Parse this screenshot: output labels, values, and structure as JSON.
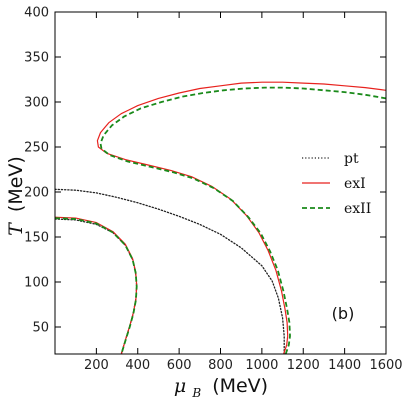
{
  "chart_data": {
    "type": "line",
    "title": "",
    "xlabel_symbol": "μ",
    "xlabel_sub": "B",
    "xlabel_unit": "(MeV)",
    "ylabel_symbol": "T",
    "ylabel_unit": "(MeV)",
    "xlim": [
      0,
      1600
    ],
    "ylim": [
      20,
      400
    ],
    "x_ticks": [
      200,
      400,
      600,
      800,
      1000,
      1200,
      1400,
      1600
    ],
    "y_ticks": [
      50,
      100,
      150,
      200,
      250,
      300,
      350,
      400
    ],
    "legend": {
      "placement": "center-right"
    },
    "annotation": "(b)",
    "series": [
      {
        "name": "pt",
        "color": "#222222",
        "style": "dotted",
        "segments": [
          [
            [
              0,
              170
            ],
            [
              100,
              169
            ],
            [
              200,
              164
            ],
            [
              280,
              155
            ],
            [
              340,
              141
            ],
            [
              375,
              125
            ],
            [
              390,
              110
            ],
            [
              395,
              95
            ],
            [
              390,
              80
            ],
            [
              378,
              65
            ],
            [
              360,
              50
            ],
            [
              340,
              35
            ],
            [
              320,
              20
            ]
          ],
          [
            [
              0,
              203
            ],
            [
              100,
              202
            ],
            [
              200,
              199
            ],
            [
              300,
              194
            ],
            [
              400,
              188
            ],
            [
              500,
              181
            ],
            [
              600,
              173
            ],
            [
              700,
              164
            ],
            [
              800,
              153
            ],
            [
              900,
              138
            ],
            [
              1000,
              118
            ],
            [
              1050,
              101
            ],
            [
              1080,
              82
            ],
            [
              1100,
              60
            ],
            [
              1108,
              40
            ],
            [
              1108,
              20
            ]
          ]
        ]
      },
      {
        "name": "exI",
        "color": "#e8221e",
        "style": "solid",
        "segments": [
          [
            [
              0,
              172
            ],
            [
              100,
              171
            ],
            [
              200,
              166
            ],
            [
              280,
              156
            ],
            [
              340,
              142
            ],
            [
              375,
              126
            ],
            [
              390,
              111
            ],
            [
              395,
              96
            ],
            [
              391,
              81
            ],
            [
              379,
              66
            ],
            [
              361,
              51
            ],
            [
              341,
              36
            ],
            [
              321,
              20
            ]
          ],
          [
            [
              1105,
              20
            ],
            [
              1120,
              30
            ],
            [
              1125,
              40
            ],
            [
              1122,
              55
            ],
            [
              1112,
              70
            ],
            [
              1095,
              90
            ],
            [
              1068,
              113
            ],
            [
              1030,
              135
            ],
            [
              985,
              155
            ],
            [
              925,
              174
            ],
            [
              850,
              192
            ],
            [
              760,
              206
            ],
            [
              660,
              217
            ],
            [
              560,
              224
            ],
            [
              450,
              230
            ],
            [
              340,
              236
            ],
            [
              250,
              243
            ],
            [
              210,
              250
            ],
            [
              205,
              257
            ],
            [
              220,
              266
            ],
            [
              260,
              277
            ],
            [
              320,
              287
            ],
            [
              400,
              296
            ],
            [
              500,
              304
            ],
            [
              600,
              310
            ],
            [
              700,
              315
            ],
            [
              800,
              318
            ],
            [
              900,
              321
            ],
            [
              1000,
              322
            ],
            [
              1100,
              322
            ],
            [
              1200,
              321
            ],
            [
              1300,
              320
            ],
            [
              1400,
              318
            ],
            [
              1500,
              316
            ],
            [
              1600,
              313
            ]
          ]
        ]
      },
      {
        "name": "exII",
        "color": "#1a8a1a",
        "style": "dashed",
        "segments": [
          [
            [
              0,
              171
            ],
            [
              100,
              170
            ],
            [
              200,
              165
            ],
            [
              280,
              155
            ],
            [
              340,
              141
            ],
            [
              375,
              125
            ],
            [
              390,
              110
            ],
            [
              395,
              95
            ],
            [
              391,
              80
            ],
            [
              379,
              65
            ],
            [
              361,
              50
            ],
            [
              341,
              35
            ],
            [
              321,
              20
            ]
          ],
          [
            [
              1115,
              20
            ],
            [
              1130,
              30
            ],
            [
              1136,
              40
            ],
            [
              1133,
              55
            ],
            [
              1122,
              70
            ],
            [
              1104,
              90
            ],
            [
              1077,
              113
            ],
            [
              1040,
              134
            ],
            [
              995,
              154
            ],
            [
              935,
              172
            ],
            [
              860,
              190
            ],
            [
              770,
              204
            ],
            [
              670,
              215
            ],
            [
              570,
              222
            ],
            [
              460,
              228
            ],
            [
              350,
              234
            ],
            [
              265,
              241
            ],
            [
              225,
              248
            ],
            [
              220,
              254
            ],
            [
              235,
              263
            ],
            [
              275,
              274
            ],
            [
              335,
              284
            ],
            [
              415,
              293
            ],
            [
              515,
              300
            ],
            [
              615,
              306
            ],
            [
              715,
              310
            ],
            [
              815,
              313
            ],
            [
              915,
              315
            ],
            [
              1015,
              316
            ],
            [
              1100,
              316
            ],
            [
              1200,
              315
            ],
            [
              1300,
              313
            ],
            [
              1400,
              311
            ],
            [
              1500,
              308
            ],
            [
              1600,
              304
            ]
          ]
        ]
      }
    ]
  }
}
